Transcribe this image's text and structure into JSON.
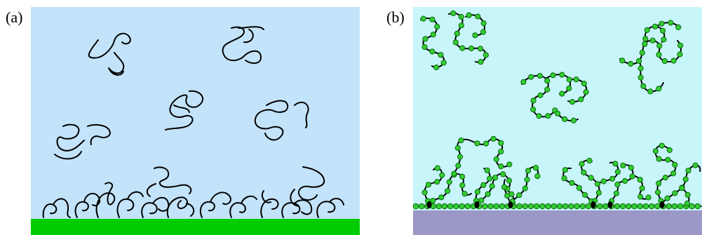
{
  "panels": [
    {
      "label": "(a)",
      "background": "#c3e3fa",
      "substrate": "#00cc00"
    },
    {
      "label": "(b)",
      "background": "#c8f5fa",
      "substrate": "#9b97c6",
      "bead": "#33cc33",
      "anchor": "#000000"
    }
  ]
}
